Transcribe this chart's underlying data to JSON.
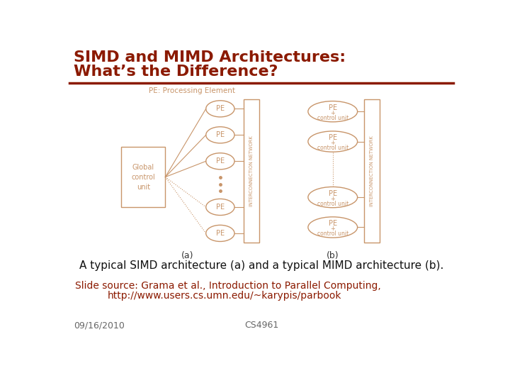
{
  "title_line1": "SIMD and MIMD Architectures:",
  "title_line2": "What’s the Difference?",
  "title_color": "#8B1A00",
  "title_fontsize": 16,
  "separator_color": "#8B1A00",
  "diagram_color": "#C8956A",
  "diagram_text_color": "#C8956A",
  "caption": "A typical SIMD architecture (a) and a typical MIMD architecture (b).",
  "caption_fontsize": 11,
  "source_line1": "Slide source: Grama et al., Introduction to Parallel Computing,",
  "source_line2": "http://www.users.cs.umn.edu/~karypis/parbook",
  "source_color": "#8B1A00",
  "source_fontsize": 10,
  "footer_left": "09/16/2010",
  "footer_center": "CS4961",
  "footer_color": "#666666",
  "footer_fontsize": 9,
  "bg_color": "#FFFFFF",
  "label_pe": "PE: Processing Element",
  "label_a": "(a)",
  "label_b": "(b)"
}
